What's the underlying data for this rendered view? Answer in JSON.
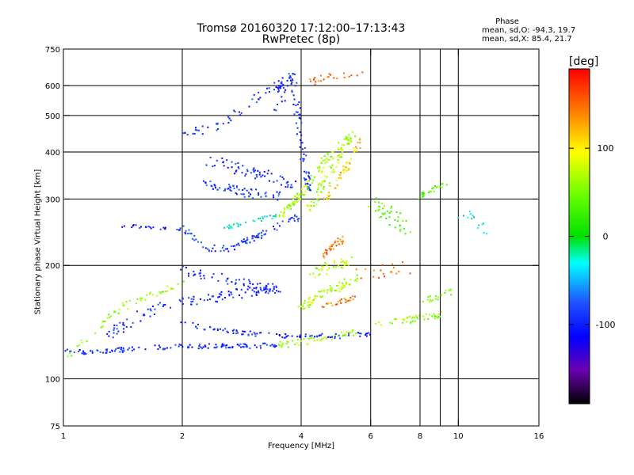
{
  "title": "Tromsø 20160320 17:12:00–17:13:43",
  "subtitle": "RwPretec (8p)",
  "phase_info": {
    "title": "Phase",
    "line_o": "mean, sd,O: -94.3, 19.7",
    "line_x": "mean, sd,X:  85.4, 21.7"
  },
  "colorbar": {
    "unit": "[deg]",
    "range": [
      -190,
      190
    ],
    "ticks": [
      {
        "value": 100,
        "label": "100"
      },
      {
        "value": 0,
        "label": "0"
      },
      {
        "value": -100,
        "label": "-100"
      }
    ]
  },
  "chart_data": {
    "type": "scatter",
    "xlabel": "Frequency [MHz]",
    "ylabel": "Stationary phase Virtual Height [km]",
    "x_scale": "log",
    "y_scale": "log",
    "xlim": [
      1,
      16
    ],
    "ylim": [
      75,
      750
    ],
    "grid": true,
    "x_ticks": [
      {
        "value": 1,
        "label": "1"
      },
      {
        "value": 2,
        "label": "2"
      },
      {
        "value": 4,
        "label": "4"
      },
      {
        "value": 6,
        "label": "6"
      },
      {
        "value": 8,
        "label": "8"
      },
      {
        "value": 10,
        "label": "10"
      },
      {
        "value": 16,
        "label": "16"
      }
    ],
    "x_grid": [
      2,
      4,
      6,
      8,
      9,
      10
    ],
    "y_ticks": [
      {
        "value": 75,
        "label": "75"
      },
      {
        "value": 100,
        "label": "100"
      },
      {
        "value": 200,
        "label": "200"
      },
      {
        "value": 300,
        "label": "300"
      },
      {
        "value": 400,
        "label": "400"
      },
      {
        "value": 500,
        "label": "500"
      },
      {
        "value": 600,
        "label": "600"
      },
      {
        "value": 750,
        "label": "750"
      }
    ],
    "y_grid": [
      100,
      200,
      300,
      400,
      500,
      600
    ],
    "traces": [
      {
        "points": [
          [
            1.0,
            118
          ],
          [
            1.2,
            118
          ],
          [
            1.5,
            120
          ],
          [
            2.0,
            122
          ],
          [
            2.5,
            122
          ],
          [
            3.0,
            122
          ],
          [
            3.5,
            123
          ]
        ],
        "phase": -95,
        "spread": 3,
        "n": 130
      },
      {
        "points": [
          [
            1.0,
            112
          ],
          [
            1.2,
            135
          ],
          [
            1.45,
            158
          ],
          [
            1.7,
            168
          ],
          [
            2.0,
            180
          ]
        ],
        "phase": 60,
        "spread": 4,
        "n": 55
      },
      {
        "points": [
          [
            1.3,
            130
          ],
          [
            1.6,
            150
          ],
          [
            2.0,
            160
          ],
          [
            2.5,
            165
          ],
          [
            3.0,
            170
          ],
          [
            3.5,
            175
          ]
        ],
        "phase": -95,
        "spread": 6,
        "n": 110
      },
      {
        "points": [
          [
            2.0,
            195
          ],
          [
            2.5,
            185
          ],
          [
            3.0,
            178
          ],
          [
            3.5,
            172
          ]
        ],
        "phase": -95,
        "spread": 6,
        "n": 55
      },
      {
        "points": [
          [
            2.0,
            140
          ],
          [
            2.5,
            135
          ],
          [
            3.0,
            132
          ],
          [
            3.5,
            130
          ],
          [
            4.0,
            130
          ],
          [
            5.0,
            130
          ],
          [
            6.0,
            132
          ]
        ],
        "phase": -95,
        "spread": 3,
        "n": 90
      },
      {
        "points": [
          [
            3.5,
            123
          ],
          [
            4.0,
            125
          ],
          [
            4.5,
            128
          ],
          [
            5.0,
            130
          ],
          [
            5.5,
            133
          ]
        ],
        "phase": 65,
        "spread": 4,
        "n": 50
      },
      {
        "points": [
          [
            4.0,
            155
          ],
          [
            4.5,
            168
          ],
          [
            5.0,
            175
          ],
          [
            5.5,
            185
          ]
        ],
        "phase": 70,
        "spread": 5,
        "n": 70
      },
      {
        "points": [
          [
            4.5,
            155
          ],
          [
            5.0,
            160
          ],
          [
            5.5,
            165
          ]
        ],
        "phase": 150,
        "spread": 3,
        "n": 25
      },
      {
        "points": [
          [
            6.0,
            140
          ],
          [
            7.0,
            142
          ],
          [
            8.0,
            145
          ],
          [
            9.0,
            148
          ]
        ],
        "phase": 60,
        "spread": 4,
        "n": 45
      },
      {
        "points": [
          [
            8.0,
            160
          ],
          [
            8.8,
            165
          ],
          [
            9.5,
            170
          ]
        ],
        "phase": 55,
        "spread": 4,
        "n": 20
      },
      {
        "points": [
          [
            1.4,
            255
          ],
          [
            1.7,
            252
          ],
          [
            2.0,
            250
          ]
        ],
        "phase": -100,
        "spread": 2,
        "n": 25
      },
      {
        "points": [
          [
            2.0,
            250
          ],
          [
            2.3,
            222
          ],
          [
            2.7,
            222
          ],
          [
            3.0,
            235
          ],
          [
            3.5,
            255
          ],
          [
            4.0,
            270
          ]
        ],
        "phase": -90,
        "spread": 4,
        "n": 90
      },
      {
        "points": [
          [
            2.5,
            250
          ],
          [
            3.0,
            262
          ],
          [
            3.5,
            270
          ]
        ],
        "phase": -30,
        "spread": 3,
        "n": 30
      },
      {
        "points": [
          [
            2.2,
            330
          ],
          [
            2.6,
            320
          ],
          [
            3.0,
            310
          ],
          [
            3.6,
            305
          ]
        ],
        "phase": -90,
        "spread": 6,
        "n": 60
      },
      {
        "points": [
          [
            2.3,
            380
          ],
          [
            2.8,
            360
          ],
          [
            3.3,
            345
          ],
          [
            3.8,
            330
          ]
        ],
        "phase": -95,
        "spread": 7,
        "n": 60
      },
      {
        "points": [
          [
            2.0,
            440
          ],
          [
            2.5,
            470
          ],
          [
            3.0,
            540
          ],
          [
            3.5,
            600
          ],
          [
            3.8,
            640
          ]
        ],
        "phase": -90,
        "spread": 6,
        "n": 55
      },
      {
        "points": [
          [
            3.8,
            640
          ],
          [
            3.9,
            520
          ],
          [
            4.0,
            430
          ],
          [
            4.1,
            360
          ],
          [
            4.2,
            320
          ]
        ],
        "phase": -95,
        "spread": 4,
        "n": 70
      },
      {
        "points": [
          [
            3.5,
            270
          ],
          [
            3.8,
            290
          ],
          [
            4.0,
            310
          ],
          [
            4.3,
            340
          ],
          [
            4.6,
            380
          ],
          [
            5.0,
            420
          ]
        ],
        "phase": 70,
        "spread": 4,
        "n": 90
      },
      {
        "points": [
          [
            4.2,
            280
          ],
          [
            4.5,
            320
          ],
          [
            4.8,
            360
          ],
          [
            5.1,
            410
          ],
          [
            5.4,
            450
          ]
        ],
        "phase": 70,
        "spread": 5,
        "n": 80
      },
      {
        "points": [
          [
            4.6,
            300
          ],
          [
            5.0,
            340
          ],
          [
            5.3,
            380
          ],
          [
            5.7,
            430
          ]
        ],
        "phase": 115,
        "spread": 4,
        "n": 50
      },
      {
        "points": [
          [
            4.2,
            610
          ],
          [
            4.6,
            630
          ],
          [
            5.2,
            640
          ],
          [
            5.7,
            645
          ]
        ],
        "phase": 150,
        "spread": 4,
        "n": 25
      },
      {
        "points": [
          [
            4.5,
            210
          ],
          [
            4.8,
            225
          ],
          [
            5.1,
            235
          ]
        ],
        "phase": 150,
        "spread": 4,
        "n": 30
      },
      {
        "points": [
          [
            4.3,
            190
          ],
          [
            4.8,
            200
          ],
          [
            5.3,
            205
          ]
        ],
        "phase": 75,
        "spread": 6,
        "n": 40
      },
      {
        "points": [
          [
            3.4,
            620
          ],
          [
            3.6,
            580
          ],
          [
            3.5,
            520
          ]
        ],
        "phase": -100,
        "spread": 6,
        "n": 20
      },
      {
        "points": [
          [
            8.0,
            305
          ],
          [
            8.6,
            315
          ],
          [
            9.3,
            330
          ]
        ],
        "phase": 40,
        "spread": 4,
        "n": 25
      },
      {
        "points": [
          [
            6.0,
            300
          ],
          [
            6.5,
            280
          ],
          [
            7.0,
            260
          ],
          [
            7.5,
            250
          ]
        ],
        "phase": 40,
        "spread": 9,
        "n": 40
      },
      {
        "points": [
          [
            10.0,
            280
          ],
          [
            10.8,
            265
          ],
          [
            11.6,
            250
          ]
        ],
        "phase": -30,
        "spread": 8,
        "n": 14
      },
      {
        "points": [
          [
            5.5,
            190
          ],
          [
            6.5,
            195
          ],
          [
            7.5,
            200
          ]
        ],
        "phase": 150,
        "spread": 10,
        "n": 18
      }
    ]
  }
}
